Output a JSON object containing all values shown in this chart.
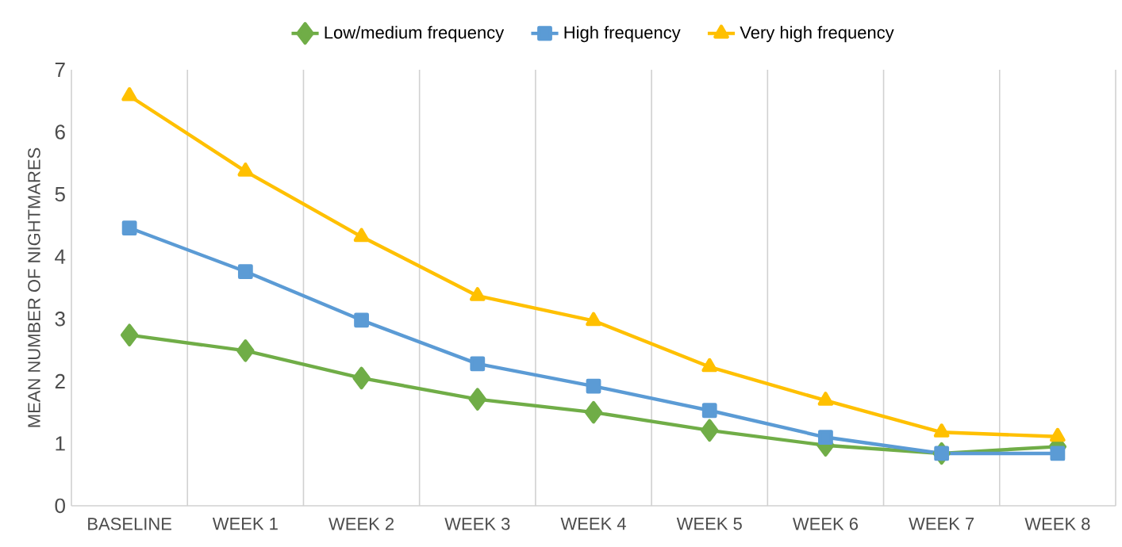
{
  "chart_data": {
    "type": "line",
    "ylabel": "MEAN NUMBER OF NIGHTMARES",
    "categories": [
      "BASELINE",
      "WEEK 1",
      "WEEK 2",
      "WEEK 3",
      "WEEK 4",
      "WEEK 5",
      "WEEK 6",
      "WEEK 7",
      "WEEK 8"
    ],
    "series": [
      {
        "name": "Low/medium frequency",
        "color": "#70ad47",
        "marker": "diamond",
        "values": [
          2.74,
          2.49,
          2.05,
          1.71,
          1.5,
          1.21,
          0.97,
          0.84,
          0.95
        ]
      },
      {
        "name": "High frequency",
        "color": "#5b9bd5",
        "marker": "square",
        "values": [
          4.46,
          3.76,
          2.98,
          2.28,
          1.92,
          1.53,
          1.1,
          0.84,
          0.84
        ]
      },
      {
        "name": "Very high frequency",
        "color": "#ffc000",
        "marker": "triangle",
        "values": [
          6.58,
          5.37,
          4.32,
          3.37,
          2.97,
          2.23,
          1.69,
          1.18,
          1.11
        ]
      }
    ],
    "ylim": [
      0,
      7
    ],
    "yticks": [
      0,
      1,
      2,
      3,
      4,
      5,
      6,
      7
    ],
    "grid": "x",
    "legend": "top",
    "line_style": "solid"
  }
}
